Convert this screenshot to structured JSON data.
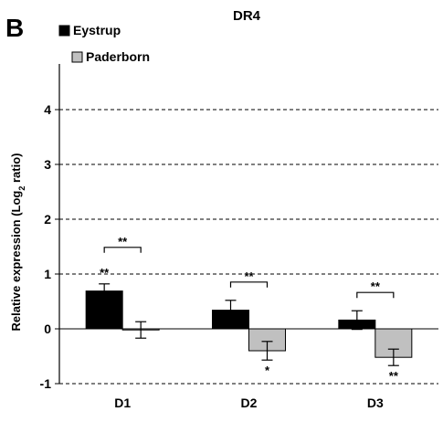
{
  "panel_label": "B",
  "chart_data": {
    "type": "bar",
    "title": "DR4",
    "ylabel": "Relative expression (Log",
    "ylabel_sub": "2",
    "ylabel_tail": " ratio)",
    "xlabel": "",
    "ylim": [
      -1,
      4.8
    ],
    "yticks": [
      -1,
      0,
      1,
      2,
      3,
      4
    ],
    "grid": "dashed horizontal at each tick",
    "legend_position": "top-left",
    "categories": [
      "D1",
      "D2",
      "D3"
    ],
    "series": [
      {
        "name": "Eystrup",
        "color": "#000000",
        "values": [
          0.69,
          0.34,
          0.16
        ],
        "errors": [
          0.13,
          0.18,
          0.17
        ]
      },
      {
        "name": "Paderborn",
        "color": "#c0c0c0",
        "values": [
          -0.02,
          -0.4,
          -0.52
        ],
        "errors": [
          0.15,
          0.17,
          0.15
        ]
      }
    ],
    "annotations": {
      "bracket_label": "**",
      "brackets": [
        "**",
        "**",
        "**"
      ],
      "eystrup_marks": [
        "**",
        "",
        ""
      ],
      "paderborn_marks": [
        "",
        "*",
        "**"
      ]
    }
  }
}
